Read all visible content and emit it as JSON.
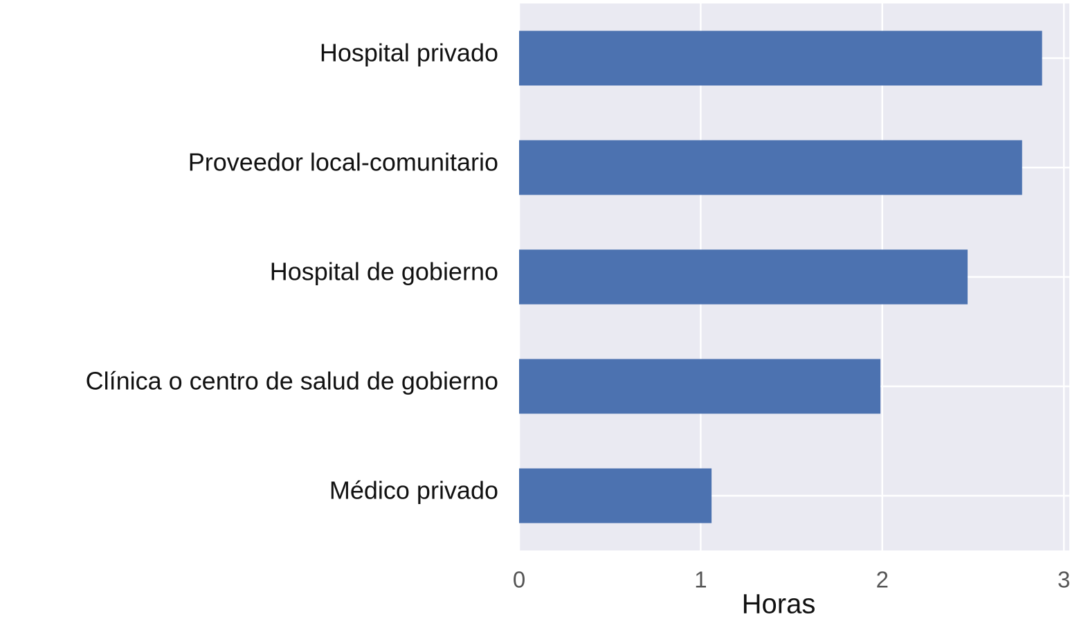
{
  "chart_data": {
    "type": "barh",
    "categories": [
      "Hospital privado",
      "Proveedor local-comunitario",
      "Hospital de gobierno",
      "Clínica o centro de salud de gobierno",
      "Médico privado"
    ],
    "values": [
      2.88,
      2.77,
      2.47,
      1.99,
      1.06
    ],
    "color": "#4c72b0",
    "xlabel": "Horas",
    "xlim": [
      0,
      3.03
    ],
    "xticks": [
      0,
      1,
      2,
      3
    ],
    "grid": true
  }
}
